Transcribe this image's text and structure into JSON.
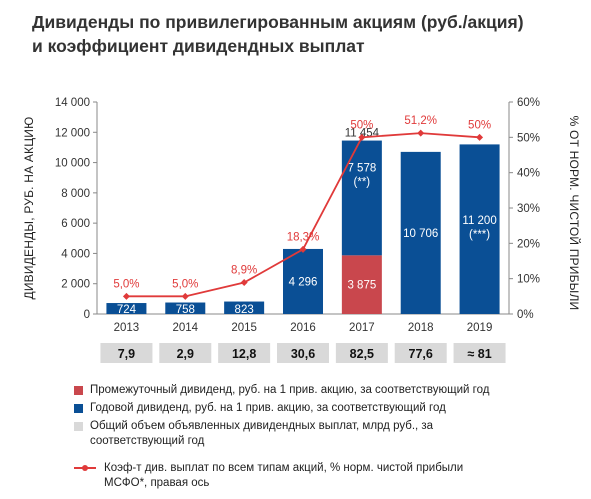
{
  "title_line1": "Дивиденды по привилегированным акциям (руб./акция)",
  "title_line2": "и коэффициент дивидендных выплат",
  "colors": {
    "interim": "#c9474d",
    "annual": "#0a4f95",
    "total": "#d9d9d9",
    "line": "#e03a3a"
  },
  "legend": {
    "interim": "Промежуточный дивиденд, руб. на 1 прив. акцию, за соответствующий год",
    "annual": "Годовой дивиденд, руб. на 1 прив. акцию, за соответствующий год",
    "total_line1": "Общий объем объявленных дивидендных выплат, млрд руб., за",
    "total_line2": "соответствующий год",
    "line_line1": "Коэф-т див. выплат по всем типам акций, % норм. чистой прибыли",
    "line_line2": "МСФО*, правая ось"
  },
  "chart_data": {
    "type": "bar",
    "categories": [
      "2013",
      "2014",
      "2015",
      "2016",
      "2017",
      "2018",
      "2019"
    ],
    "ylabel": "ДИВИДЕНДЫ, РУБ. НА АКЦИЮ",
    "y2label": "% ОТ НОРМ. ЧИСТОЙ ПРИБЫЛИ",
    "ylim": [
      0,
      14000
    ],
    "y2lim": [
      0,
      60
    ],
    "yticks": [
      "0",
      "2 000",
      "4 000",
      "6 000",
      "8 000",
      "10 000",
      "12 000",
      "14 000"
    ],
    "y2ticks": [
      "0%",
      "10%",
      "20%",
      "30%",
      "40%",
      "50%",
      "60%"
    ],
    "interim": [
      null,
      null,
      null,
      null,
      3875,
      null,
      null
    ],
    "annual": [
      724,
      758,
      823,
      4296,
      7578,
      10706,
      11200
    ],
    "annual_labels": [
      "724",
      "758",
      "823",
      "4 296",
      "7 578",
      "10 706",
      "11 200"
    ],
    "annual_notes": [
      "",
      "",
      "",
      "",
      "(**)",
      "",
      "(***)"
    ],
    "interim_labels": [
      "",
      "",
      "",
      "",
      "3 875",
      "",
      ""
    ],
    "stack_total_label": "11 454",
    "payout_ratio": [
      5.0,
      5.0,
      8.9,
      18.3,
      50,
      51.2,
      50
    ],
    "payout_labels": [
      "5,0%",
      "5,0%",
      "8,9%",
      "18,3%",
      "50%",
      "51,2%",
      "50%"
    ],
    "totals": [
      "7,9",
      "2,9",
      "12,8",
      "30,6",
      "82,5",
      "77,6",
      "≈ 81"
    ]
  }
}
